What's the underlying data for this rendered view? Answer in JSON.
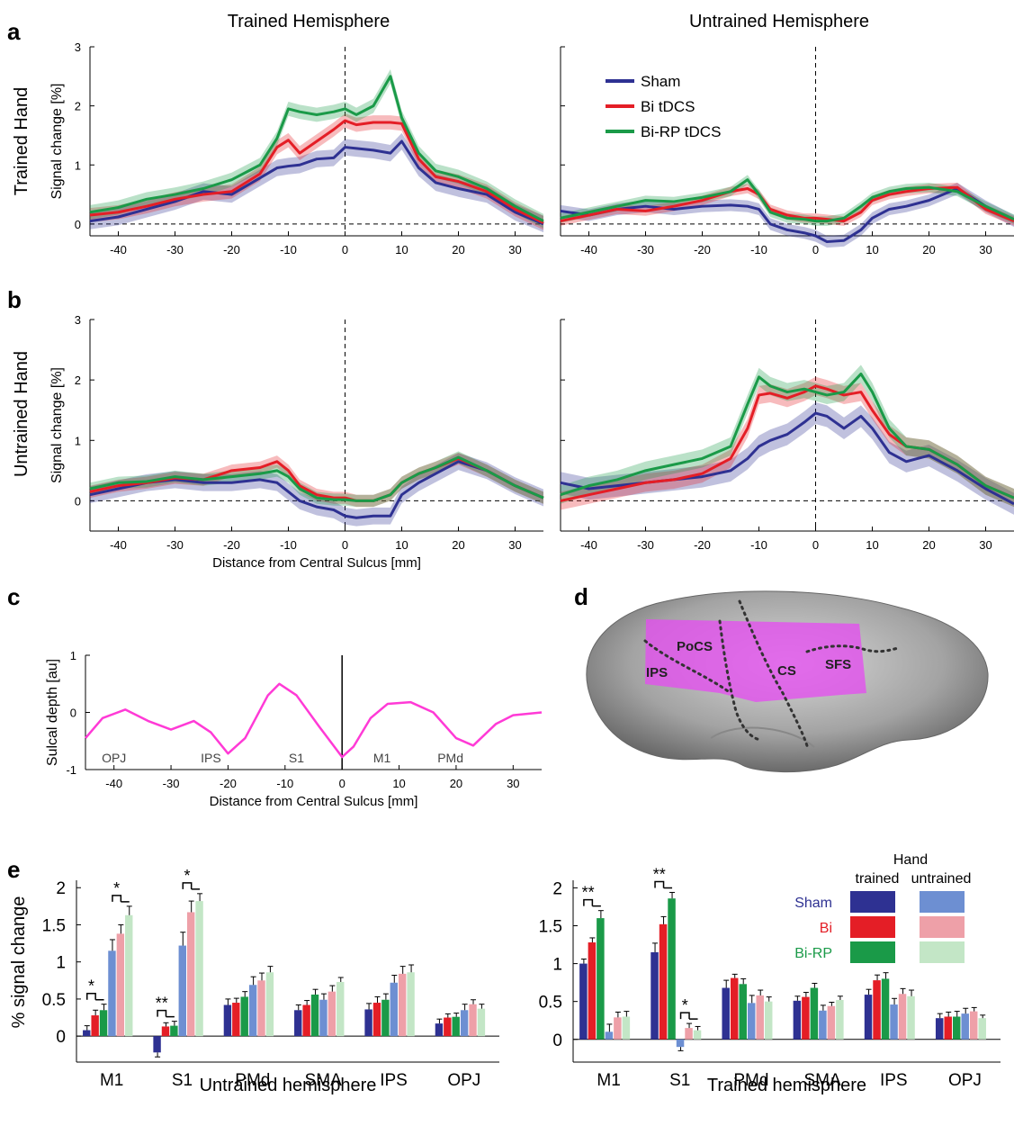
{
  "panel_letters": {
    "a": "a",
    "b": "b",
    "c": "c",
    "d": "d",
    "e": "e"
  },
  "column_titles": {
    "left": "Trained Hemisphere",
    "right": "Untrained Hemisphere"
  },
  "row_titles": {
    "a": "Trained Hand",
    "b": "Untrained Hand"
  },
  "profile_ylabel": "Signal change [%]",
  "profile_xlabel": "Distance from Central Sulcus [mm]",
  "legend": {
    "sham": "Sham",
    "bi": "Bi tDCS",
    "birp": "Bi-RP tDCS"
  },
  "colors": {
    "sham": "#2e3192",
    "bi": "#e41e26",
    "birp": "#1a9a48",
    "sham_light": "#6d8fd2",
    "bi_light": "#eea0a8",
    "birp_light": "#c3e6c6",
    "depth": "#ff3ad6",
    "roi": "#e44ef0"
  },
  "brain": {
    "labels": {
      "ips": "IPS",
      "pocs": "PoCS",
      "cs": "CS",
      "sfs": "SFS"
    }
  },
  "bar_legend": {
    "hand": "Hand",
    "trained": "trained",
    "untrained": "untrained",
    "sham": "Sham",
    "bi": "Bi",
    "birp": "Bi-RP"
  },
  "chart_data": [
    {
      "id": "a-left",
      "type": "line",
      "title": "Trained Hemisphere",
      "ylabel": "Signal change [%]",
      "xlim": [
        -45,
        35
      ],
      "ylim": [
        -0.2,
        3
      ],
      "xticks": [
        -40,
        -30,
        -20,
        -10,
        0,
        10,
        20,
        30
      ],
      "yticks": [
        0,
        1,
        2,
        3
      ],
      "x": [
        -45,
        -40,
        -35,
        -30,
        -25,
        -20,
        -15,
        -12,
        -10,
        -8,
        -5,
        -2,
        0,
        2,
        5,
        8,
        10,
        13,
        16,
        20,
        25,
        30,
        35
      ],
      "series": [
        {
          "key": "sham",
          "name": "Sham",
          "values": [
            0.05,
            0.12,
            0.25,
            0.38,
            0.55,
            0.5,
            0.78,
            0.95,
            0.98,
            1.0,
            1.1,
            1.12,
            1.3,
            1.28,
            1.25,
            1.2,
            1.4,
            0.95,
            0.7,
            0.6,
            0.5,
            0.2,
            0.0
          ],
          "err": 0.14
        },
        {
          "key": "bi",
          "name": "Bi tDCS",
          "values": [
            0.15,
            0.2,
            0.3,
            0.42,
            0.5,
            0.55,
            0.85,
            1.3,
            1.42,
            1.2,
            1.4,
            1.6,
            1.75,
            1.68,
            1.72,
            1.72,
            1.7,
            1.1,
            0.8,
            0.72,
            0.55,
            0.25,
            0.02
          ],
          "err": 0.12
        },
        {
          "key": "birp",
          "name": "Bi-RP tDCS",
          "values": [
            0.2,
            0.28,
            0.42,
            0.5,
            0.6,
            0.75,
            1.0,
            1.45,
            1.95,
            1.9,
            1.85,
            1.9,
            1.95,
            1.85,
            2.0,
            2.5,
            1.8,
            1.2,
            0.9,
            0.8,
            0.6,
            0.3,
            0.05
          ],
          "err": 0.12
        }
      ]
    },
    {
      "id": "a-right",
      "type": "line",
      "title": "Untrained Hemisphere",
      "xlim": [
        -45,
        35
      ],
      "ylim": [
        -0.2,
        3
      ],
      "xticks": [
        -40,
        -30,
        -20,
        -10,
        0,
        10,
        20,
        30
      ],
      "yticks": [
        0,
        1,
        2,
        3
      ],
      "x": [
        -45,
        -40,
        -35,
        -30,
        -25,
        -20,
        -15,
        -12,
        -10,
        -8,
        -5,
        -2,
        0,
        2,
        5,
        8,
        10,
        13,
        16,
        20,
        25,
        30,
        35
      ],
      "series": [
        {
          "key": "sham",
          "name": "Sham",
          "values": [
            0.22,
            0.15,
            0.25,
            0.3,
            0.25,
            0.3,
            0.32,
            0.3,
            0.25,
            0.0,
            -0.1,
            -0.15,
            -0.2,
            -0.3,
            -0.28,
            -0.1,
            0.1,
            0.25,
            0.3,
            0.4,
            0.6,
            0.3,
            0.05
          ],
          "err": 0.1
        },
        {
          "key": "bi",
          "name": "Bi tDCS",
          "values": [
            0.05,
            0.15,
            0.25,
            0.22,
            0.3,
            0.4,
            0.55,
            0.6,
            0.5,
            0.25,
            0.15,
            0.1,
            0.1,
            0.08,
            0.05,
            0.2,
            0.4,
            0.5,
            0.55,
            0.6,
            0.62,
            0.25,
            0.05
          ],
          "err": 0.08
        },
        {
          "key": "birp",
          "name": "Bi-RP tDCS",
          "values": [
            0.1,
            0.2,
            0.3,
            0.4,
            0.38,
            0.45,
            0.55,
            0.75,
            0.5,
            0.2,
            0.1,
            0.08,
            0.05,
            0.05,
            0.1,
            0.3,
            0.45,
            0.55,
            0.6,
            0.62,
            0.55,
            0.3,
            0.08
          ],
          "err": 0.08
        }
      ]
    },
    {
      "id": "b-left",
      "type": "line",
      "ylabel": "Signal change [%]",
      "xlabel": "Distance from Central Sulcus [mm]",
      "xlim": [
        -45,
        35
      ],
      "ylim": [
        -0.5,
        3
      ],
      "xticks": [
        -40,
        -30,
        -20,
        -10,
        0,
        10,
        20,
        30
      ],
      "yticks": [
        0,
        1,
        2,
        3
      ],
      "x": [
        -45,
        -40,
        -35,
        -30,
        -25,
        -20,
        -15,
        -12,
        -10,
        -8,
        -5,
        -2,
        0,
        2,
        5,
        8,
        10,
        13,
        16,
        20,
        25,
        30,
        35
      ],
      "series": [
        {
          "key": "sham",
          "name": "Sham",
          "values": [
            0.1,
            0.2,
            0.3,
            0.35,
            0.3,
            0.3,
            0.35,
            0.3,
            0.15,
            0.0,
            -0.1,
            -0.15,
            -0.25,
            -0.28,
            -0.25,
            -0.25,
            0.1,
            0.3,
            0.45,
            0.65,
            0.5,
            0.25,
            0.05
          ],
          "err": 0.14
        },
        {
          "key": "bi",
          "name": "Bi tDCS",
          "values": [
            0.15,
            0.25,
            0.3,
            0.38,
            0.35,
            0.5,
            0.55,
            0.65,
            0.5,
            0.25,
            0.1,
            0.05,
            0.05,
            0.0,
            0.0,
            0.1,
            0.3,
            0.45,
            0.55,
            0.7,
            0.5,
            0.25,
            0.05
          ],
          "err": 0.1
        },
        {
          "key": "birp",
          "name": "Bi-RP tDCS",
          "values": [
            0.2,
            0.3,
            0.32,
            0.4,
            0.35,
            0.4,
            0.45,
            0.5,
            0.4,
            0.2,
            0.05,
            0.02,
            0.02,
            0.0,
            0.0,
            0.1,
            0.3,
            0.45,
            0.55,
            0.72,
            0.5,
            0.25,
            0.05
          ],
          "err": 0.1
        }
      ]
    },
    {
      "id": "b-right",
      "type": "line",
      "xlabel": "",
      "xlim": [
        -45,
        35
      ],
      "ylim": [
        -0.5,
        3
      ],
      "xticks": [
        -40,
        -30,
        -20,
        -10,
        0,
        10,
        20,
        30
      ],
      "yticks": [
        0,
        1,
        2,
        3
      ],
      "x": [
        -45,
        -40,
        -35,
        -30,
        -25,
        -20,
        -15,
        -12,
        -10,
        -8,
        -5,
        -2,
        0,
        2,
        5,
        8,
        10,
        13,
        16,
        20,
        25,
        30,
        35
      ],
      "series": [
        {
          "key": "sham",
          "name": "Sham",
          "values": [
            0.3,
            0.2,
            0.25,
            0.3,
            0.35,
            0.4,
            0.5,
            0.7,
            0.9,
            1.0,
            1.1,
            1.3,
            1.45,
            1.4,
            1.2,
            1.4,
            1.2,
            0.8,
            0.65,
            0.75,
            0.5,
            0.2,
            -0.05
          ],
          "err": 0.18
        },
        {
          "key": "bi",
          "name": "Bi tDCS",
          "values": [
            0.0,
            0.1,
            0.2,
            0.3,
            0.35,
            0.45,
            0.7,
            1.2,
            1.75,
            1.78,
            1.7,
            1.8,
            1.9,
            1.85,
            1.75,
            1.8,
            1.5,
            1.1,
            0.9,
            0.85,
            0.6,
            0.25,
            0.05
          ],
          "err": 0.15
        },
        {
          "key": "birp",
          "name": "Bi-RP tDCS",
          "values": [
            0.1,
            0.25,
            0.35,
            0.5,
            0.6,
            0.7,
            0.9,
            1.6,
            2.05,
            1.9,
            1.8,
            1.85,
            1.8,
            1.75,
            1.8,
            2.1,
            1.8,
            1.2,
            0.9,
            0.85,
            0.6,
            0.25,
            0.05
          ],
          "err": 0.15
        }
      ]
    },
    {
      "id": "c",
      "type": "line",
      "ylabel": "Sulcal depth [au]",
      "xlabel": "Distance from Central Sulcus [mm]",
      "xlim": [
        -45,
        35
      ],
      "ylim": [
        -1,
        1
      ],
      "xticks": [
        -40,
        -30,
        -20,
        -10,
        0,
        10,
        20,
        30
      ],
      "yticks": [
        -1,
        0,
        1
      ],
      "x": [
        -45,
        -42,
        -38,
        -34,
        -30,
        -26,
        -23,
        -20,
        -17,
        -13,
        -11,
        -8,
        -4,
        0,
        2,
        5,
        8,
        12,
        16,
        20,
        23,
        27,
        30,
        35
      ],
      "values": [
        -0.45,
        -0.1,
        0.05,
        -0.15,
        -0.3,
        -0.15,
        -0.35,
        -0.72,
        -0.45,
        0.3,
        0.5,
        0.3,
        -0.25,
        -0.78,
        -0.6,
        -0.1,
        0.15,
        0.18,
        0.0,
        -0.45,
        -0.58,
        -0.2,
        -0.05,
        0.0
      ],
      "annotations": [
        {
          "text": "OPJ",
          "x": -40
        },
        {
          "text": "IPS",
          "x": -23
        },
        {
          "text": "S1",
          "x": -8
        },
        {
          "text": "M1",
          "x": 7
        },
        {
          "text": "PMd",
          "x": 19
        }
      ]
    },
    {
      "id": "e-left",
      "type": "bar",
      "xlabel": "Untrained hemisphere",
      "ylabel": "% signal change",
      "ylim": [
        -0.35,
        2.1
      ],
      "yticks": [
        0,
        0.5,
        1,
        1.5,
        2
      ],
      "categories": [
        "M1",
        "S1",
        "PMd",
        "SMA",
        "IPS",
        "OPJ"
      ],
      "series": [
        {
          "name": "Sham trained",
          "color_key": "sham",
          "values": [
            0.08,
            -0.22,
            0.42,
            0.35,
            0.36,
            0.17
          ],
          "err": [
            0.06,
            0.06,
            0.08,
            0.07,
            0.08,
            0.06
          ]
        },
        {
          "name": "Bi trained",
          "color_key": "bi",
          "values": [
            0.28,
            0.13,
            0.45,
            0.42,
            0.45,
            0.25
          ],
          "err": [
            0.07,
            0.05,
            0.06,
            0.06,
            0.08,
            0.05
          ]
        },
        {
          "name": "Bi-RP trained",
          "color_key": "birp",
          "values": [
            0.35,
            0.14,
            0.53,
            0.56,
            0.49,
            0.26
          ],
          "err": [
            0.08,
            0.06,
            0.07,
            0.07,
            0.08,
            0.05
          ]
        },
        {
          "name": "Sham untrained",
          "color_key": "sham_light",
          "values": [
            1.15,
            1.22,
            0.69,
            0.49,
            0.72,
            0.35
          ],
          "err": [
            0.15,
            0.18,
            0.11,
            0.08,
            0.1,
            0.08
          ]
        },
        {
          "name": "Bi untrained",
          "color_key": "bi_light",
          "values": [
            1.38,
            1.67,
            0.75,
            0.6,
            0.84,
            0.43
          ],
          "err": [
            0.12,
            0.15,
            0.1,
            0.08,
            0.1,
            0.06
          ]
        },
        {
          "name": "Bi-RP untrained",
          "color_key": "birp_light",
          "values": [
            1.63,
            1.82,
            0.86,
            0.73,
            0.86,
            0.37
          ],
          "err": [
            0.12,
            0.1,
            0.08,
            0.06,
            0.1,
            0.06
          ]
        }
      ],
      "significance": [
        {
          "text": "*",
          "category": "M1",
          "group": "trained"
        },
        {
          "text": "*",
          "category": "M1",
          "group": "untrained"
        },
        {
          "text": "**",
          "category": "S1",
          "group": "trained"
        },
        {
          "text": "*",
          "category": "S1",
          "group": "untrained"
        }
      ]
    },
    {
      "id": "e-right",
      "type": "bar",
      "xlabel": "Trained hemisphere",
      "ylim": [
        -0.3,
        2.1
      ],
      "yticks": [
        0,
        0.5,
        1,
        1.5,
        2
      ],
      "categories": [
        "M1",
        "S1",
        "PMd",
        "SMA",
        "IPS",
        "OPJ"
      ],
      "series": [
        {
          "name": "Sham trained",
          "color_key": "sham",
          "values": [
            1.0,
            1.15,
            0.68,
            0.51,
            0.59,
            0.28
          ],
          "err": [
            0.06,
            0.12,
            0.1,
            0.06,
            0.07,
            0.06
          ]
        },
        {
          "name": "Bi trained",
          "color_key": "bi",
          "values": [
            1.28,
            1.52,
            0.81,
            0.56,
            0.78,
            0.3
          ],
          "err": [
            0.06,
            0.1,
            0.05,
            0.06,
            0.07,
            0.06
          ]
        },
        {
          "name": "Bi-RP trained",
          "color_key": "birp",
          "values": [
            1.6,
            1.86,
            0.73,
            0.68,
            0.8,
            0.3
          ],
          "err": [
            0.1,
            0.08,
            0.07,
            0.06,
            0.08,
            0.07
          ]
        },
        {
          "name": "Sham untrained",
          "color_key": "sham_light",
          "values": [
            0.1,
            -0.1,
            0.48,
            0.38,
            0.46,
            0.34
          ],
          "err": [
            0.1,
            0.05,
            0.1,
            0.07,
            0.08,
            0.07
          ]
        },
        {
          "name": "Bi untrained",
          "color_key": "bi_light",
          "values": [
            0.29,
            0.15,
            0.58,
            0.44,
            0.6,
            0.37
          ],
          "err": [
            0.07,
            0.06,
            0.07,
            0.05,
            0.07,
            0.05
          ]
        },
        {
          "name": "Bi-RP untrained",
          "color_key": "birp_light",
          "values": [
            0.3,
            0.12,
            0.5,
            0.52,
            0.57,
            0.28
          ],
          "err": [
            0.07,
            0.05,
            0.06,
            0.05,
            0.08,
            0.04
          ]
        }
      ],
      "significance": [
        {
          "text": "**",
          "category": "M1",
          "group": "trained"
        },
        {
          "text": "**",
          "category": "S1",
          "group": "trained"
        },
        {
          "text": "*",
          "category": "S1",
          "group": "untrained"
        }
      ]
    }
  ]
}
